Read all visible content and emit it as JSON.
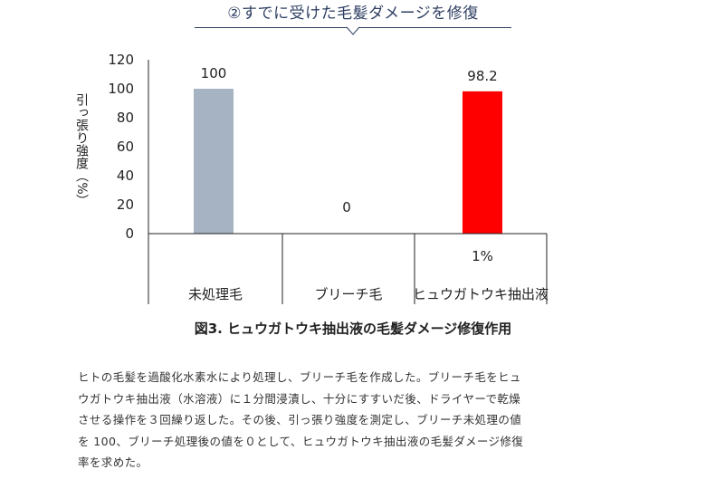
{
  "heading": "②すでに受けた毛髪ダメージを修復",
  "chart_data": {
    "type": "bar",
    "categories": [
      "未処理毛",
      "ブリーチ毛",
      "ヒュウガトウキ抽出液"
    ],
    "values": [
      100,
      0,
      98.2
    ],
    "value_labels": [
      "100",
      "0",
      "98.2"
    ],
    "bar_colors": [
      "#a5b3c3",
      "#ffffff",
      "#ff0000"
    ],
    "concentration_labels": [
      "",
      "",
      "1%"
    ],
    "ylabel": "引っ張り強度（%）",
    "ylim": [
      0,
      120
    ],
    "yticks": [
      0,
      20,
      40,
      60,
      80,
      100,
      120
    ],
    "title": "図3. ヒュウガトウキ抽出液の毛髪ダメージ修復作用",
    "grid": false,
    "legend": "none"
  },
  "description": [
    "ヒトの毛髪を過酸化水素水により処理し、ブリーチ毛を作成した。ブリーチ毛をヒュ",
    "ウガトウキ抽出液（水溶液）に１分間浸漬し、十分にすすいだ後、ドライヤーで乾燥",
    "させる操作を３回繰り返した。その後、引っ張り強度を測定し、ブリーチ未処理の値",
    "を 100、ブリーチ処理後の値を０として、ヒュウガトウキ抽出液の毛髪ダメージ修復",
    "率を求めた。"
  ]
}
